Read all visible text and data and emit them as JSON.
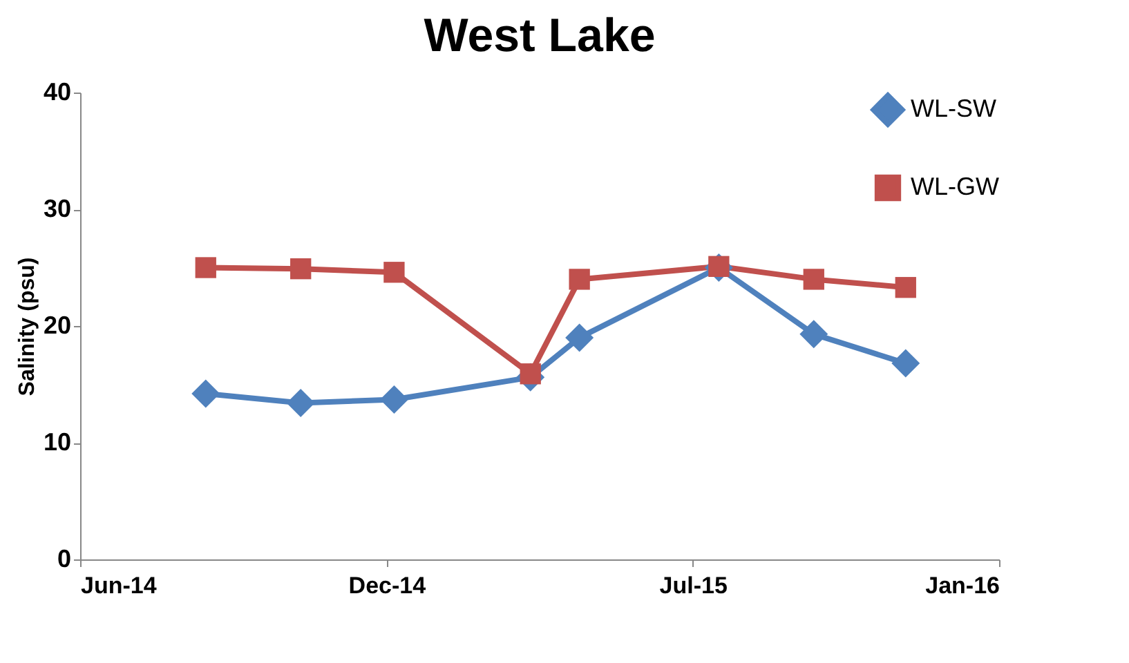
{
  "chart_data": {
    "type": "line",
    "title": "West Lake",
    "ylabel": "Salinity (psu)",
    "x": [
      "2014-08-22",
      "2014-10-23",
      "2014-12-23",
      "2015-03-22",
      "2015-04-23",
      "2015-07-23",
      "2015-09-23",
      "2015-11-22"
    ],
    "series": [
      {
        "name": "WL-SW",
        "color": "#4f81bd",
        "marker": "diamond",
        "values": [
          14.2,
          13.4,
          13.7,
          15.6,
          19.0,
          25.0,
          19.3,
          16.8
        ]
      },
      {
        "name": "WL-GW",
        "color": "#c0504d",
        "marker": "square",
        "values": [
          25.0,
          24.9,
          24.6,
          15.9,
          24.0,
          25.1,
          24.0,
          23.3
        ]
      }
    ],
    "xlim": [
      "2014-06-01",
      "2016-01-22"
    ],
    "xticks": [
      {
        "value": "2014-06-01",
        "label": "Jun-14"
      },
      {
        "value": "2014-12-18",
        "label": "Dec-14"
      },
      {
        "value": "2015-07-06",
        "label": "Jul-15"
      },
      {
        "value": "2016-01-22",
        "label": "Jan-16"
      }
    ],
    "ylim": [
      0,
      40
    ],
    "yticks": [
      0,
      10,
      20,
      30,
      40
    ],
    "grid": false,
    "legend": "top right",
    "line_style": "solid"
  }
}
